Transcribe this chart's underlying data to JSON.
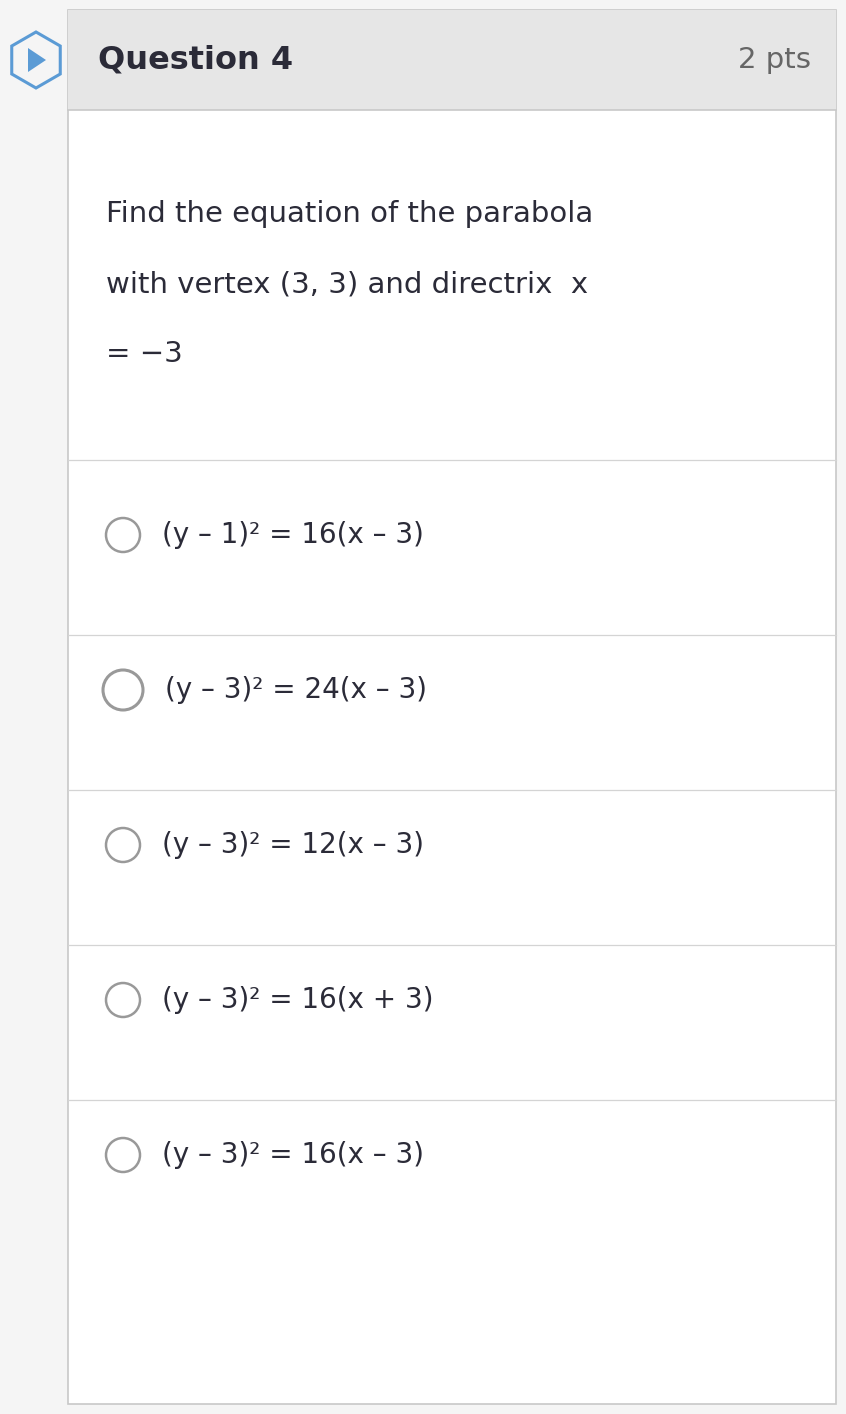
{
  "title": "Question 4",
  "pts": "2 pts",
  "question_lines": [
    "Find the equation of the parabola",
    "with vertex (3, 3) and directrix  x",
    "= −3"
  ],
  "options": [
    "(y – 1)² = 16(x – 3)",
    "(y – 3)² = 24(x – 3)",
    "(y – 3)² = 12(x – 3)",
    "(y – 3)² = 16(x + 3)",
    "(y – 3)² = 16(x – 3)"
  ],
  "fig_bg": "#f5f5f5",
  "header_bg": "#e6e6e6",
  "body_bg": "#ffffff",
  "border_color": "#c8c8c8",
  "title_color": "#2b2b38",
  "pts_color": "#666666",
  "question_color": "#2b2b38",
  "option_color": "#2b2b38",
  "radio_color": "#999999",
  "divider_color": "#d4d4d4",
  "arrow_stroke": "#5b9bd5",
  "fig_width": 8.46,
  "fig_height": 14.14,
  "dpi": 100
}
